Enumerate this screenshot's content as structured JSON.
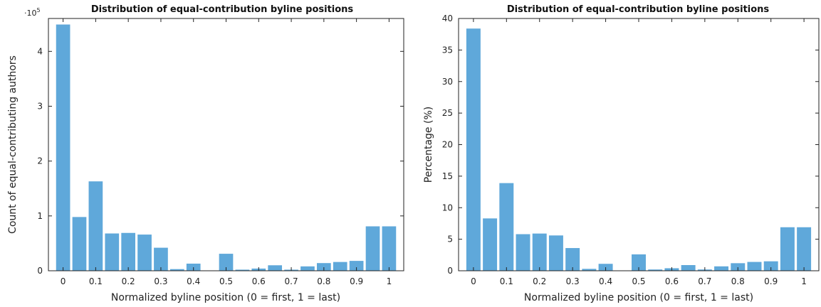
{
  "chart_data": [
    {
      "type": "bar",
      "title": "Distribution of equal-contribution byline positions",
      "xlabel": "Normalized byline position (0 = first, 1 = last)",
      "ylabel": "Count of equal-contributing authors",
      "y_multiplier_label": "·10",
      "y_multiplier_exponent": "5",
      "x": [
        0,
        0.05,
        0.1,
        0.15,
        0.2,
        0.25,
        0.3,
        0.35,
        0.4,
        0.45,
        0.5,
        0.55,
        0.6,
        0.65,
        0.7,
        0.75,
        0.8,
        0.85,
        0.9,
        0.95,
        1
      ],
      "values": [
        4.49,
        0.98,
        1.63,
        0.68,
        0.69,
        0.66,
        0.42,
        0.03,
        0.13,
        0.0,
        0.31,
        0.02,
        0.04,
        0.1,
        0.02,
        0.08,
        0.14,
        0.16,
        0.18,
        0.81,
        0.81
      ],
      "xlim": [
        -0.045,
        1.045
      ],
      "ylim": [
        0,
        4.6
      ],
      "xticks": [
        0,
        0.1,
        0.2,
        0.3,
        0.4,
        0.5,
        0.6,
        0.7,
        0.8,
        0.9,
        1
      ],
      "xtick_labels": [
        "0",
        "0.1",
        "0.2",
        "0.3",
        "0.4",
        "0.5",
        "0.6",
        "0.7",
        "0.8",
        "0.9",
        "1"
      ],
      "yticks": [
        0,
        1,
        2,
        3,
        4
      ],
      "ytick_labels": [
        "0",
        "1",
        "2",
        "3",
        "4"
      ],
      "grid": false,
      "bar_color": "#5fa8da"
    },
    {
      "type": "bar",
      "title": "Distribution of equal-contribution byline positions",
      "xlabel": "Normalized byline position (0 = first, 1 = last)",
      "ylabel": "Percentage (%)",
      "x": [
        0,
        0.05,
        0.1,
        0.15,
        0.2,
        0.25,
        0.3,
        0.35,
        0.4,
        0.45,
        0.5,
        0.55,
        0.6,
        0.65,
        0.7,
        0.75,
        0.8,
        0.85,
        0.9,
        0.95,
        1
      ],
      "values": [
        38.4,
        8.3,
        13.9,
        5.8,
        5.9,
        5.6,
        3.6,
        0.3,
        1.1,
        0.0,
        2.6,
        0.2,
        0.4,
        0.9,
        0.2,
        0.7,
        1.2,
        1.4,
        1.5,
        6.9,
        6.9
      ],
      "xlim": [
        -0.045,
        1.045
      ],
      "ylim": [
        0,
        40
      ],
      "xticks": [
        0,
        0.1,
        0.2,
        0.3,
        0.4,
        0.5,
        0.6,
        0.7,
        0.8,
        0.9,
        1
      ],
      "xtick_labels": [
        "0",
        "0.1",
        "0.2",
        "0.3",
        "0.4",
        "0.5",
        "0.6",
        "0.7",
        "0.8",
        "0.9",
        "1"
      ],
      "yticks": [
        0,
        5,
        10,
        15,
        20,
        25,
        30,
        35,
        40
      ],
      "ytick_labels": [
        "0",
        "5",
        "10",
        "15",
        "20",
        "25",
        "30",
        "35",
        "40"
      ],
      "grid": false,
      "bar_color": "#5fa8da"
    }
  ]
}
